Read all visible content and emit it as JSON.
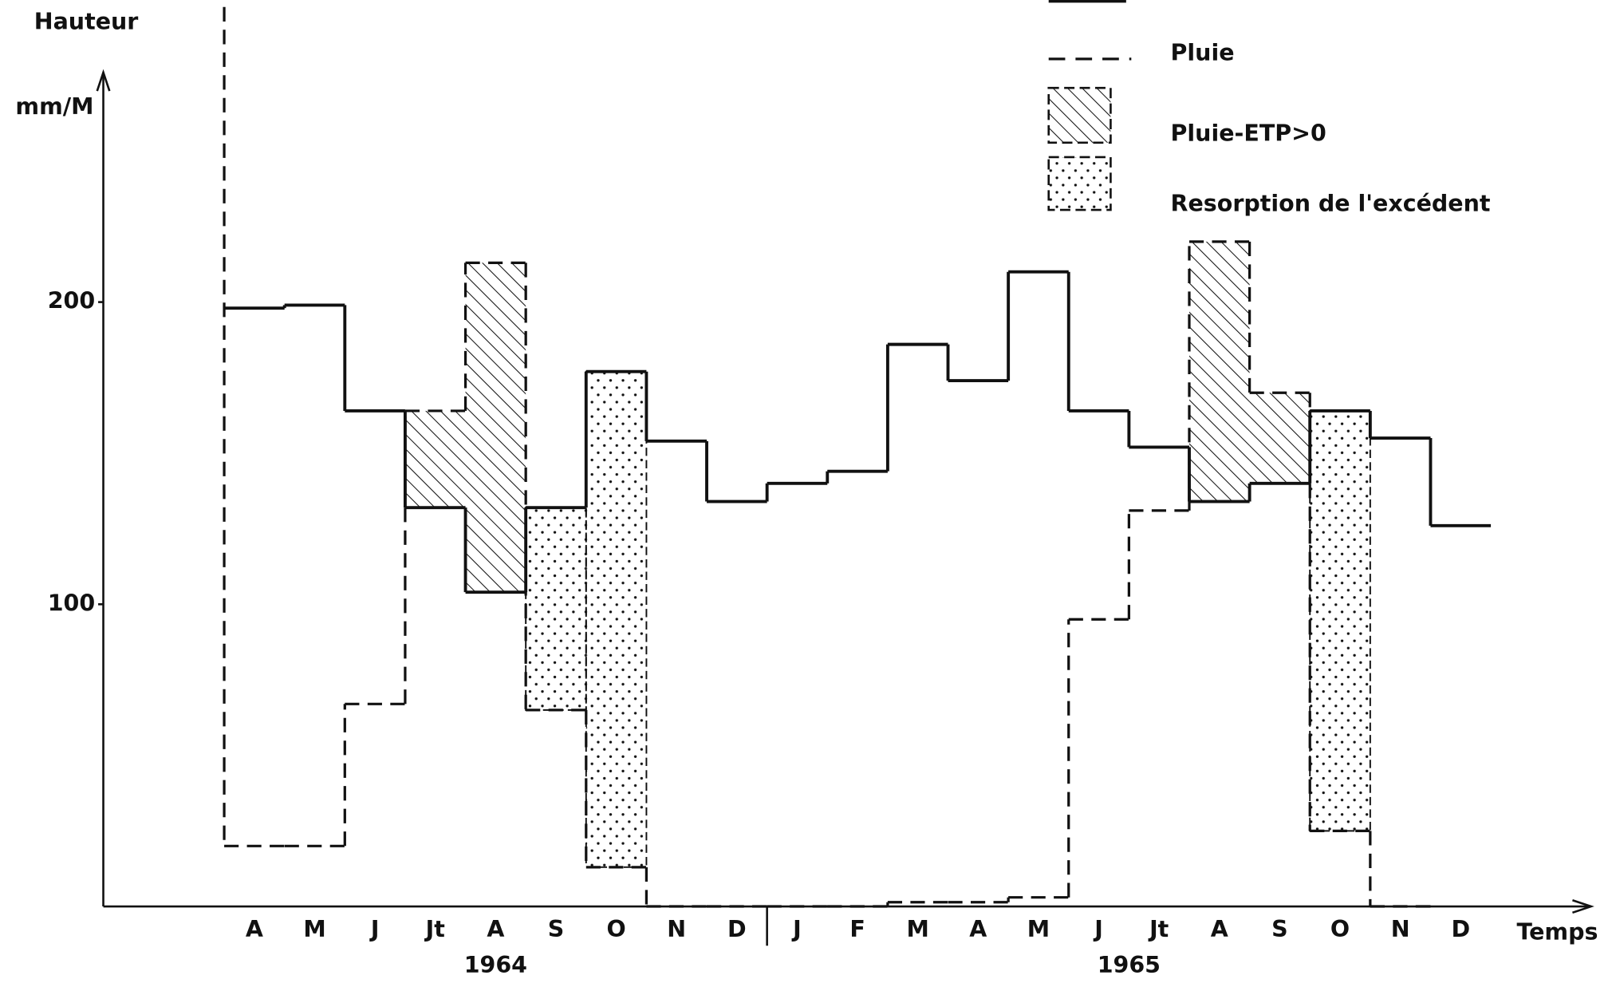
{
  "chart_data": {
    "type": "step",
    "y_label_top": "Hauteur",
    "y_label_unit": "mm/M",
    "x_label": "Temps",
    "categories": [
      "A",
      "M",
      "J",
      "Jt",
      "A",
      "S",
      "O",
      "N",
      "D",
      "J",
      "F",
      "M",
      "A",
      "M",
      "J",
      "Jt",
      "A",
      "S",
      "O",
      "N",
      "D"
    ],
    "years": [
      {
        "label": "1964",
        "start": 0,
        "end": 9
      },
      {
        "label": "1965",
        "start": 9,
        "end": 21
      }
    ],
    "ylim": [
      0,
      276
    ],
    "yticks": [
      100,
      200
    ],
    "series": [
      {
        "name": null,
        "style": "solid",
        "color": "#111",
        "values": [
          198,
          199,
          164,
          132,
          104,
          132,
          177,
          154,
          134,
          140,
          144,
          186,
          174,
          210,
          164,
          152,
          134,
          140,
          164,
          155,
          126
        ]
      },
      {
        "name": "Pluie",
        "style": "dashed",
        "color": "#111",
        "values": [
          20,
          20,
          67,
          164,
          213,
          65,
          13,
          0,
          0,
          0,
          0,
          1.4,
          1.4,
          3,
          95,
          131,
          220,
          170,
          25,
          0,
          null
        ]
      }
    ],
    "excess_label": "Pluie-ETP>0",
    "resorption": {
      "name": "Resorption de l'excédent",
      "values": [
        null,
        null,
        null,
        null,
        null,
        67,
        164,
        null,
        null,
        null,
        null,
        null,
        null,
        null,
        null,
        null,
        null,
        null,
        139,
        null,
        null
      ]
    }
  }
}
